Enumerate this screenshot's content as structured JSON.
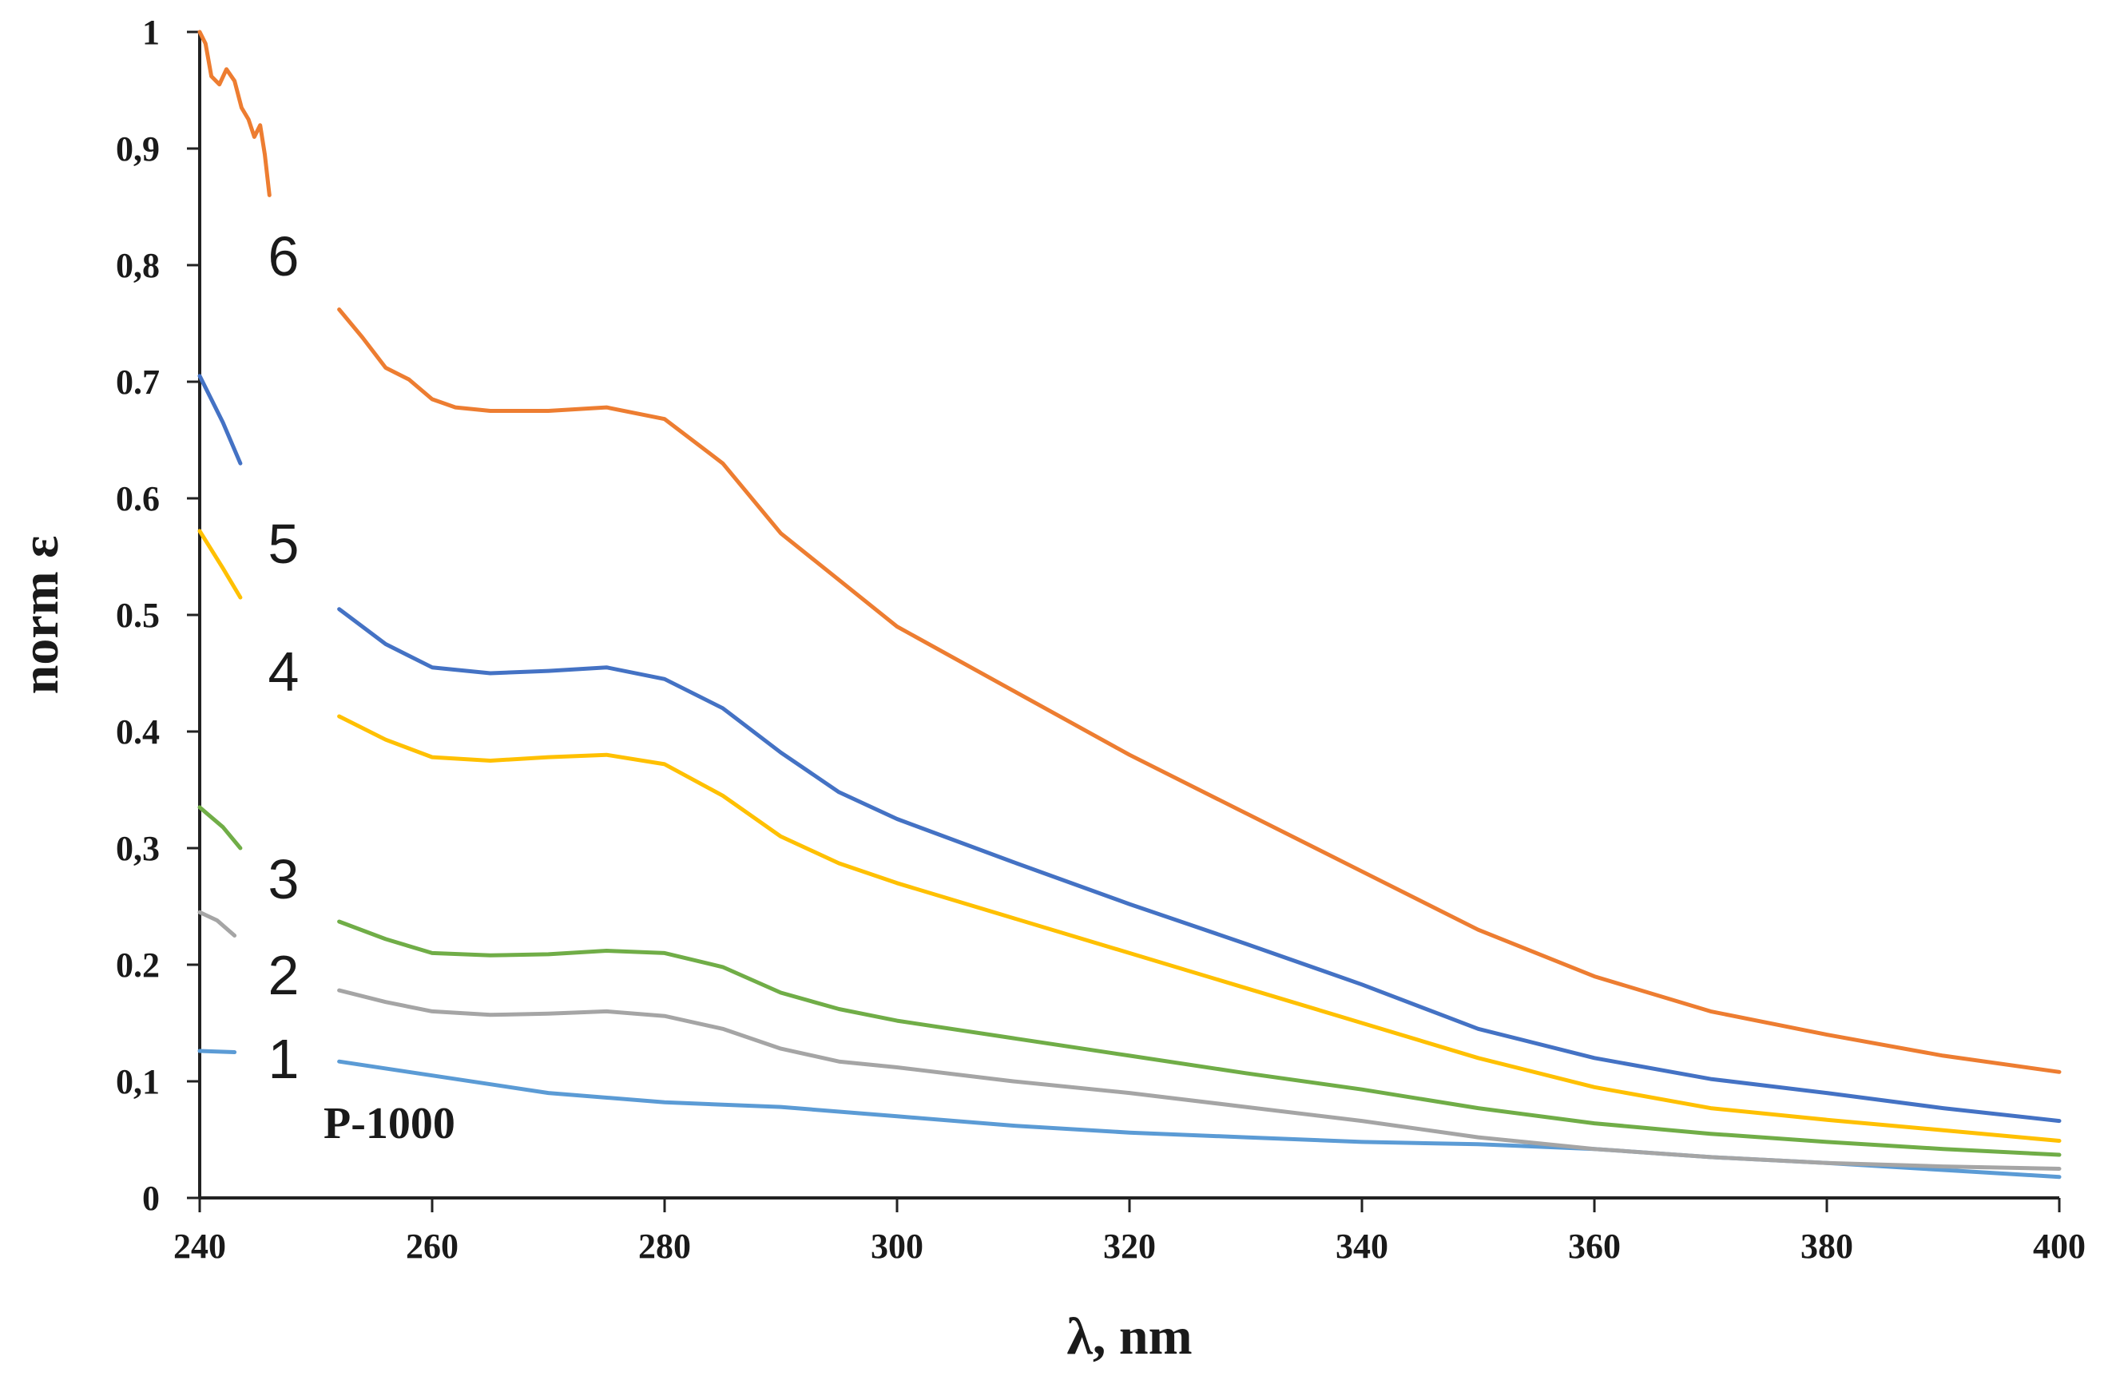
{
  "chart_data": {
    "type": "line",
    "title": "",
    "xlabel": "λ, nm",
    "ylabel": "norm ε",
    "xlim": [
      240,
      400
    ],
    "ylim": [
      0,
      1
    ],
    "xticks": [
      240,
      260,
      280,
      300,
      320,
      340,
      360,
      380,
      400
    ],
    "yticks": [
      0,
      0.1,
      0.2,
      0.3,
      0.4,
      0.5,
      0.6,
      0.7,
      0.8,
      0.9,
      1
    ],
    "ytick_labels": [
      "0",
      "0,1",
      "0.2",
      "0,3",
      "0.4",
      "0.5",
      "0.6",
      "0.7",
      "0,8",
      "0,9",
      "1"
    ],
    "grid": false,
    "annotation": "P-1000",
    "series": [
      {
        "name": "1",
        "color": "#5b9bd5",
        "segments": [
          [
            [
              240,
              0.126
            ],
            [
              243,
              0.125
            ]
          ],
          [
            [
              252,
              0.117
            ],
            [
              260,
              0.105
            ],
            [
              270,
              0.09
            ],
            [
              280,
              0.082
            ],
            [
              290,
              0.078
            ],
            [
              300,
              0.07
            ],
            [
              310,
              0.062
            ],
            [
              320,
              0.056
            ],
            [
              330,
              0.052
            ],
            [
              340,
              0.048
            ],
            [
              350,
              0.046
            ],
            [
              360,
              0.042
            ],
            [
              370,
              0.035
            ],
            [
              380,
              0.03
            ],
            [
              390,
              0.024
            ],
            [
              400,
              0.018
            ]
          ]
        ]
      },
      {
        "name": "2",
        "color": "#a5a5a5",
        "segments": [
          [
            [
              240,
              0.245
            ],
            [
              241.5,
              0.238
            ],
            [
              243,
              0.225
            ]
          ],
          [
            [
              252,
              0.178
            ],
            [
              256,
              0.168
            ],
            [
              260,
              0.16
            ],
            [
              265,
              0.157
            ],
            [
              270,
              0.158
            ],
            [
              275,
              0.16
            ],
            [
              280,
              0.156
            ],
            [
              285,
              0.145
            ],
            [
              290,
              0.128
            ],
            [
              295,
              0.117
            ],
            [
              300,
              0.112
            ],
            [
              310,
              0.1
            ],
            [
              320,
              0.09
            ],
            [
              330,
              0.078
            ],
            [
              340,
              0.066
            ],
            [
              350,
              0.052
            ],
            [
              360,
              0.042
            ],
            [
              370,
              0.035
            ],
            [
              380,
              0.03
            ],
            [
              390,
              0.027
            ],
            [
              400,
              0.025
            ]
          ]
        ]
      },
      {
        "name": "3",
        "color": "#70ad47",
        "segments": [
          [
            [
              240,
              0.335
            ],
            [
              242,
              0.318
            ],
            [
              243.5,
              0.3
            ]
          ],
          [
            [
              252,
              0.237
            ],
            [
              256,
              0.222
            ],
            [
              260,
              0.21
            ],
            [
              265,
              0.208
            ],
            [
              270,
              0.209
            ],
            [
              275,
              0.212
            ],
            [
              280,
              0.21
            ],
            [
              285,
              0.198
            ],
            [
              290,
              0.176
            ],
            [
              295,
              0.162
            ],
            [
              300,
              0.152
            ],
            [
              310,
              0.137
            ],
            [
              320,
              0.122
            ],
            [
              330,
              0.107
            ],
            [
              340,
              0.093
            ],
            [
              350,
              0.077
            ],
            [
              360,
              0.064
            ],
            [
              370,
              0.055
            ],
            [
              380,
              0.048
            ],
            [
              390,
              0.042
            ],
            [
              400,
              0.037
            ]
          ]
        ]
      },
      {
        "name": "4",
        "color": "#ffc000",
        "segments": [
          [
            [
              240,
              0.572
            ],
            [
              242,
              0.54
            ],
            [
              243.5,
              0.515
            ]
          ],
          [
            [
              252,
              0.413
            ],
            [
              256,
              0.393
            ],
            [
              260,
              0.378
            ],
            [
              265,
              0.375
            ],
            [
              270,
              0.378
            ],
            [
              275,
              0.38
            ],
            [
              280,
              0.372
            ],
            [
              285,
              0.345
            ],
            [
              290,
              0.31
            ],
            [
              295,
              0.287
            ],
            [
              300,
              0.27
            ],
            [
              310,
              0.24
            ],
            [
              320,
              0.21
            ],
            [
              330,
              0.18
            ],
            [
              340,
              0.15
            ],
            [
              350,
              0.12
            ],
            [
              360,
              0.095
            ],
            [
              370,
              0.077
            ],
            [
              380,
              0.067
            ],
            [
              390,
              0.058
            ],
            [
              400,
              0.049
            ]
          ]
        ]
      },
      {
        "name": "5",
        "color": "#4472c4",
        "segments": [
          [
            [
              240,
              0.705
            ],
            [
              242,
              0.665
            ],
            [
              243.5,
              0.63
            ]
          ],
          [
            [
              252,
              0.505
            ],
            [
              256,
              0.475
            ],
            [
              260,
              0.455
            ],
            [
              265,
              0.45
            ],
            [
              270,
              0.452
            ],
            [
              275,
              0.455
            ],
            [
              280,
              0.445
            ],
            [
              285,
              0.42
            ],
            [
              290,
              0.382
            ],
            [
              295,
              0.348
            ],
            [
              300,
              0.325
            ],
            [
              310,
              0.288
            ],
            [
              320,
              0.252
            ],
            [
              330,
              0.218
            ],
            [
              340,
              0.183
            ],
            [
              350,
              0.145
            ],
            [
              360,
              0.12
            ],
            [
              370,
              0.102
            ],
            [
              380,
              0.09
            ],
            [
              390,
              0.077
            ],
            [
              400,
              0.066
            ]
          ]
        ]
      },
      {
        "name": "6",
        "color": "#ed7d31",
        "segments": [
          [
            [
              240,
              1.0
            ],
            [
              240.5,
              0.99
            ],
            [
              241,
              0.962
            ],
            [
              241.7,
              0.955
            ],
            [
              242.3,
              0.968
            ],
            [
              243,
              0.958
            ],
            [
              243.6,
              0.935
            ],
            [
              244.2,
              0.925
            ],
            [
              244.7,
              0.91
            ],
            [
              245.2,
              0.92
            ],
            [
              245.6,
              0.895
            ],
            [
              246,
              0.86
            ]
          ],
          [
            [
              252,
              0.762
            ],
            [
              254,
              0.738
            ],
            [
              256,
              0.712
            ],
            [
              258,
              0.702
            ],
            [
              260,
              0.685
            ],
            [
              262,
              0.678
            ],
            [
              265,
              0.675
            ],
            [
              270,
              0.675
            ],
            [
              275,
              0.678
            ],
            [
              280,
              0.668
            ],
            [
              285,
              0.63
            ],
            [
              290,
              0.57
            ],
            [
              295,
              0.53
            ],
            [
              300,
              0.49
            ],
            [
              310,
              0.435
            ],
            [
              320,
              0.38
            ],
            [
              330,
              0.33
            ],
            [
              340,
              0.28
            ],
            [
              350,
              0.23
            ],
            [
              360,
              0.19
            ],
            [
              370,
              0.16
            ],
            [
              380,
              0.14
            ],
            [
              390,
              0.122
            ],
            [
              400,
              0.108
            ]
          ]
        ]
      }
    ]
  }
}
